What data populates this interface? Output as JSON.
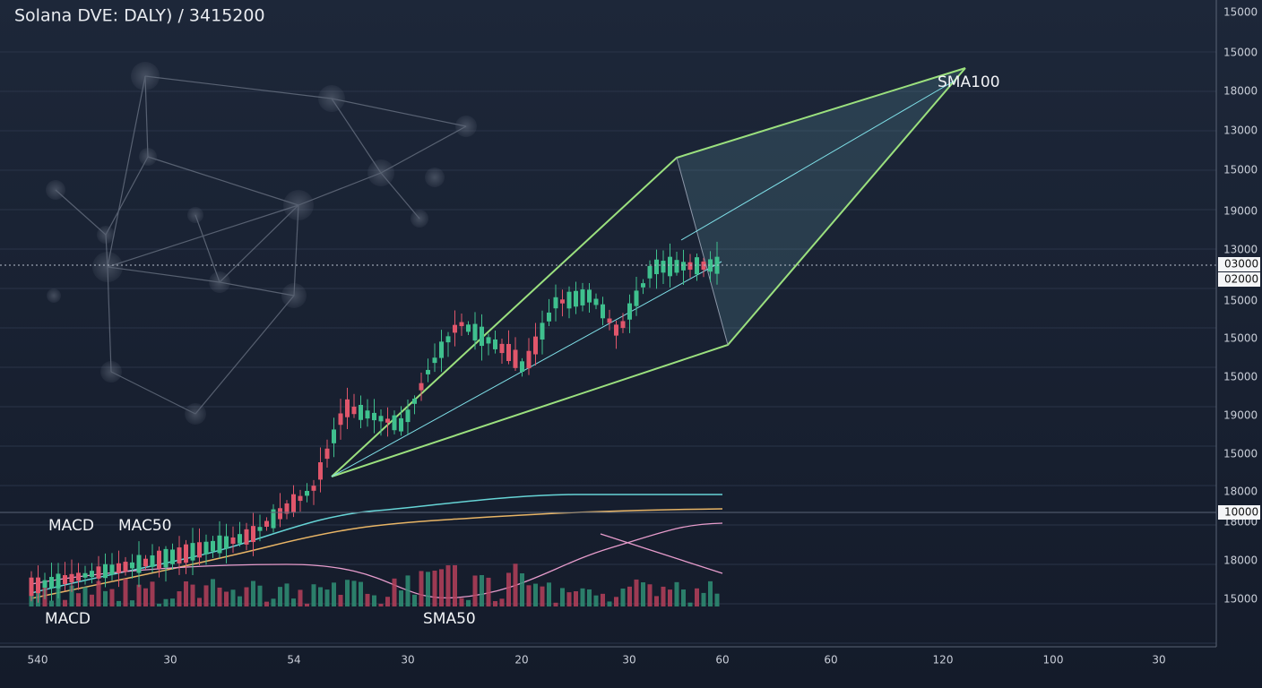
{
  "title": "Solana DVE: DALY) / 3415200",
  "y_axis_labels": [
    "15000",
    "15000",
    "18000",
    "13000",
    "15000",
    "19000",
    "13000",
    "15000",
    "15000",
    "15000",
    "19000",
    "15000",
    "18000",
    "18000",
    "18000",
    "15000"
  ],
  "price_tags": [
    "03000",
    "02000",
    "10000"
  ],
  "x_axis_labels": [
    "540",
    "30",
    "54",
    "30",
    "20",
    "30",
    "60",
    "60",
    "120",
    "100",
    "30"
  ],
  "annotations": {
    "sma100": "SMA100",
    "macd_top": "MACD",
    "mac50": "MAC50",
    "macd_bottom": "MACD",
    "sma50": "SMA50"
  }
}
